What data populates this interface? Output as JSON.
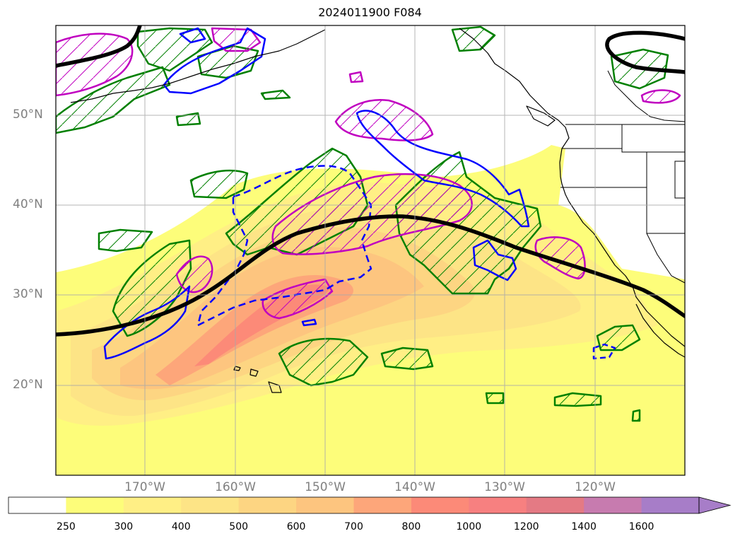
{
  "title": "2024011900 F084",
  "lat_labels": [
    "50°N",
    "40°N",
    "30°N",
    "20°N"
  ],
  "lon_labels": [
    "170°W",
    "160°W",
    "150°W",
    "140°W",
    "130°W",
    "120°W"
  ],
  "colorbar": {
    "labels": [
      "250",
      "300",
      "400",
      "500",
      "600",
      "700",
      "800",
      "1000",
      "1200",
      "1400",
      "1600"
    ],
    "colors": [
      "#ffffff",
      "#fdfd7a",
      "#ffef85",
      "#fde486",
      "#fdd582",
      "#fdc57f",
      "#fda67a",
      "#fc8a78",
      "#f78080",
      "#e47a84",
      "#c77baf",
      "#a77dc8"
    ],
    "extend": "max"
  },
  "contour_colors": {
    "ivt_shading_low": "#fdfd7a",
    "ivt_shading_high": "#f98480",
    "jet_axis": "#000000",
    "green_contour": "#008000",
    "blue_contour": "#0000ff",
    "magenta_contour": "#c000c0"
  }
}
